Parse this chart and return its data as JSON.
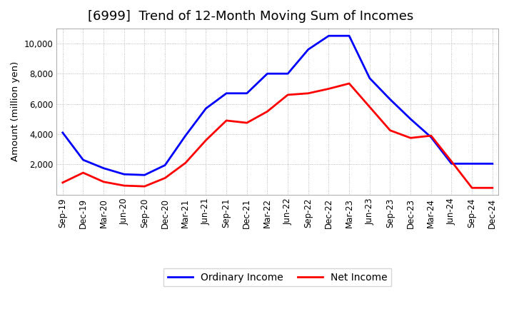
{
  "title": "[6999]  Trend of 12-Month Moving Sum of Incomes",
  "ylabel": "Amount (million yen)",
  "background_color": "#ffffff",
  "plot_background": "#ffffff",
  "grid_color": "#aaaaaa",
  "x_labels": [
    "Sep-19",
    "Dec-19",
    "Mar-20",
    "Jun-20",
    "Sep-20",
    "Dec-20",
    "Mar-21",
    "Jun-21",
    "Sep-21",
    "Dec-21",
    "Mar-22",
    "Jun-22",
    "Sep-22",
    "Dec-22",
    "Mar-23",
    "Jun-23",
    "Sep-23",
    "Dec-23",
    "Mar-24",
    "Jun-24",
    "Sep-24",
    "Dec-24"
  ],
  "ordinary_income": [
    4100,
    2300,
    1750,
    1350,
    1300,
    1950,
    3900,
    5700,
    6700,
    6700,
    8000,
    8000,
    9600,
    10500,
    10500,
    7700,
    6300,
    5000,
    3800,
    2050,
    2050,
    2050
  ],
  "net_income": [
    800,
    1450,
    850,
    600,
    550,
    1100,
    2100,
    3600,
    4900,
    4750,
    5500,
    6600,
    6700,
    7000,
    7350,
    5800,
    4250,
    3750,
    3900,
    2200,
    450,
    450
  ],
  "ordinary_color": "#0000ff",
  "net_color": "#ff0000",
  "ylim": [
    0,
    11000
  ],
  "yticks": [
    2000,
    4000,
    6000,
    8000,
    10000
  ],
  "line_width": 2.0,
  "title_fontsize": 13,
  "legend_fontsize": 10,
  "tick_fontsize": 8.5,
  "ylabel_fontsize": 9.5
}
